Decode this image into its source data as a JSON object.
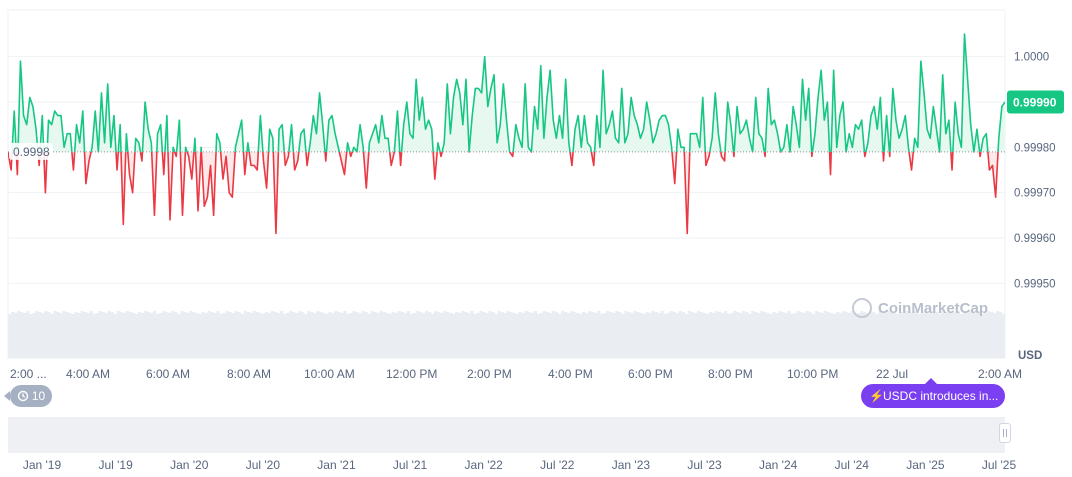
{
  "chart_data": {
    "type": "line",
    "currency_label": "USD",
    "y_ticks": [
      "1.0000",
      "0.99990",
      "0.99980",
      "0.99970",
      "0.99960",
      "0.99950"
    ],
    "y_tick_values": [
      1.0,
      0.9999,
      0.9998,
      0.9997,
      0.9996,
      0.9995
    ],
    "ylim": [
      0.99945,
      1.00005
    ],
    "x_tick_labels": [
      "2:00 ...",
      "4:00 AM",
      "6:00 AM",
      "8:00 AM",
      "10:00 AM",
      "12:00 PM",
      "2:00 PM",
      "4:00 PM",
      "6:00 PM",
      "8:00 PM",
      "10:00 PM",
      "22 Jul",
      "2:00 AM"
    ],
    "baseline_value": 0.99979,
    "baseline_label": "0.9998",
    "current_value_label": "0.99990",
    "colors": {
      "up": "#16c784",
      "down": "#ea3943",
      "up_fill": "#e6f8ef",
      "down_fill": "#fde9ea",
      "current_badge": "#16c784"
    },
    "series": [
      {
        "values": [
          0.99979,
          0.99975,
          0.99988,
          0.99974,
          0.99999,
          0.99987,
          0.99985,
          0.99991,
          0.99989,
          0.99984,
          0.99976,
          0.99987,
          0.9997,
          0.99986,
          0.99985,
          0.99988,
          0.99987,
          0.99987,
          0.9998,
          0.99983,
          0.99983,
          0.99975,
          0.99985,
          0.99981,
          0.99988,
          0.99972,
          0.99977,
          0.9998,
          0.99988,
          0.99979,
          0.99992,
          0.99981,
          0.99994,
          0.9998,
          0.99987,
          0.99975,
          0.99985,
          0.99963,
          0.99983,
          0.99974,
          0.9997,
          0.99982,
          0.99981,
          0.99977,
          0.9999,
          0.99984,
          0.99981,
          0.99965,
          0.99983,
          0.99985,
          0.99974,
          0.99987,
          0.99964,
          0.9998,
          0.99978,
          0.99986,
          0.99965,
          0.9998,
          0.99978,
          0.99973,
          0.99982,
          0.99966,
          0.9998,
          0.99967,
          0.99969,
          0.99976,
          0.99965,
          0.99983,
          0.99981,
          0.99973,
          0.99978,
          0.9997,
          0.99969,
          0.9998,
          0.99983,
          0.99986,
          0.99974,
          0.99981,
          0.99976,
          0.99976,
          0.99975,
          0.99987,
          0.99977,
          0.99971,
          0.99984,
          0.99982,
          0.99961,
          0.99984,
          0.99985,
          0.99976,
          0.99978,
          0.99985,
          0.99975,
          0.99977,
          0.99983,
          0.99984,
          0.99976,
          0.99981,
          0.99987,
          0.99983,
          0.99992,
          0.99985,
          0.99977,
          0.99986,
          0.99987,
          0.99983,
          0.9998,
          0.99977,
          0.99974,
          0.99981,
          0.99978,
          0.9998,
          0.99979,
          0.99985,
          0.9998,
          0.99971,
          0.99981,
          0.99983,
          0.99985,
          0.99981,
          0.99987,
          0.99982,
          0.99982,
          0.99976,
          0.99979,
          0.99988,
          0.99976,
          0.99985,
          0.9999,
          0.99983,
          0.99982,
          0.99995,
          0.99986,
          0.99991,
          0.99984,
          0.99986,
          0.99984,
          0.99973,
          0.99981,
          0.99978,
          0.99981,
          0.99994,
          0.99983,
          0.99991,
          0.99995,
          0.99992,
          0.99985,
          0.99995,
          0.99979,
          0.99987,
          0.99993,
          0.99993,
          0.99992,
          1.0,
          0.99989,
          0.99993,
          0.99996,
          0.99981,
          0.99985,
          0.99994,
          0.99986,
          0.99979,
          0.99978,
          0.99985,
          0.99982,
          0.9998,
          0.99994,
          0.9998,
          0.99979,
          0.99989,
          0.99984,
          0.99998,
          0.99982,
          0.99991,
          0.99997,
          0.99986,
          0.99982,
          0.99987,
          0.99982,
          0.99995,
          0.99981,
          0.99976,
          0.99984,
          0.99987,
          0.9998,
          0.99987,
          0.99981,
          0.9998,
          0.99976,
          0.99987,
          0.9998,
          0.99997,
          0.99983,
          0.99985,
          0.99988,
          0.99982,
          0.99981,
          0.99993,
          0.99981,
          0.99983,
          0.99991,
          0.99987,
          0.99985,
          0.99982,
          0.99984,
          0.9999,
          0.99986,
          0.99981,
          0.99983,
          0.99986,
          0.99987,
          0.99987,
          0.99985,
          0.9998,
          0.99972,
          0.99984,
          0.9998,
          0.9998,
          0.99961,
          0.99983,
          0.99983,
          0.99983,
          0.9998,
          0.99991,
          0.99976,
          0.99978,
          0.99982,
          0.99992,
          0.99983,
          0.99978,
          0.99977,
          0.9999,
          0.99985,
          0.99978,
          0.99989,
          0.99983,
          0.99984,
          0.99986,
          0.99982,
          0.99979,
          0.99991,
          0.99983,
          0.99982,
          0.99978,
          0.99993,
          0.99985,
          0.99986,
          0.99983,
          0.99979,
          0.9998,
          0.99985,
          0.99979,
          0.99989,
          0.99985,
          0.9998,
          0.99995,
          0.99986,
          0.99993,
          0.99978,
          0.99983,
          0.99991,
          0.99997,
          0.99986,
          0.9999,
          0.99974,
          0.99997,
          0.9998,
          0.99987,
          0.9999,
          0.99979,
          0.99983,
          0.9998,
          0.99985,
          0.99984,
          0.99986,
          0.99978,
          0.99981,
          0.99987,
          0.99989,
          0.99984,
          0.99991,
          0.99977,
          0.99987,
          0.99978,
          0.99993,
          0.99986,
          0.99982,
          0.99984,
          0.99987,
          0.9998,
          0.99975,
          0.99982,
          0.9998,
          0.99999,
          0.99992,
          0.99984,
          0.99982,
          0.99989,
          0.99984,
          0.99979,
          0.99996,
          0.99983,
          0.99986,
          0.99975,
          0.9999,
          0.99983,
          0.9998,
          1.00005,
          0.99995,
          0.99985,
          0.99979,
          0.99984,
          0.99978,
          0.99982,
          0.99983,
          0.99975,
          0.99976,
          0.99969,
          0.99982,
          0.99989,
          0.9999
        ]
      }
    ]
  },
  "range_navigator": {
    "year_labels": [
      "Jan '19",
      "Jul '19",
      "Jan '20",
      "Jul '20",
      "Jan '21",
      "Jul '21",
      "Jan '22",
      "Jul '22",
      "Jan '23",
      "Jul '23",
      "Jan '24",
      "Jul '24",
      "Jan '25",
      "Jul '25"
    ]
  },
  "history_pill": {
    "label": "10",
    "icon": "history-icon"
  },
  "news_pill": {
    "label": "USDC introduces in...",
    "icon": "lightning-icon"
  },
  "watermark": {
    "text": "CoinMarketCap",
    "icon": "coinmarketcap-logo-icon"
  }
}
